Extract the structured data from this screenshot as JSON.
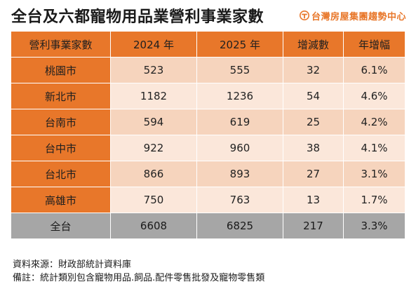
{
  "title": "全台及六都寵物用品業營利事業家數",
  "brand": {
    "name": "台灣房屋集團趨勢中心",
    "color": "#e8772a",
    "logo_icon": "taiwan-house-logo"
  },
  "colors": {
    "accent": "#e8772a",
    "row_light": "#fbe7da",
    "row_medium": "#f6d4bd",
    "total_row": "#a6a6a6"
  },
  "table": {
    "headers": [
      "營利事業家數",
      "2024 年",
      "2025 年",
      "增減數",
      "年增幅"
    ],
    "rows": [
      [
        "桃園市",
        "523",
        "555",
        "32",
        "6.1%"
      ],
      [
        "新北市",
        "1182",
        "1236",
        "54",
        "4.6%"
      ],
      [
        "台南市",
        "594",
        "619",
        "25",
        "4.2%"
      ],
      [
        "台中市",
        "922",
        "960",
        "38",
        "4.1%"
      ],
      [
        "台北市",
        "866",
        "893",
        "27",
        "3.1%"
      ],
      [
        "高雄市",
        "750",
        "763",
        "13",
        "1.7%"
      ]
    ],
    "total": [
      "全台",
      "6608",
      "6825",
      "217",
      "3.3%"
    ]
  },
  "notes": {
    "source": "資料來源：財政部統計資料庫",
    "remark": "備註：統計類別包含寵物用品.飼品.配件零售批發及寵物零售類"
  }
}
